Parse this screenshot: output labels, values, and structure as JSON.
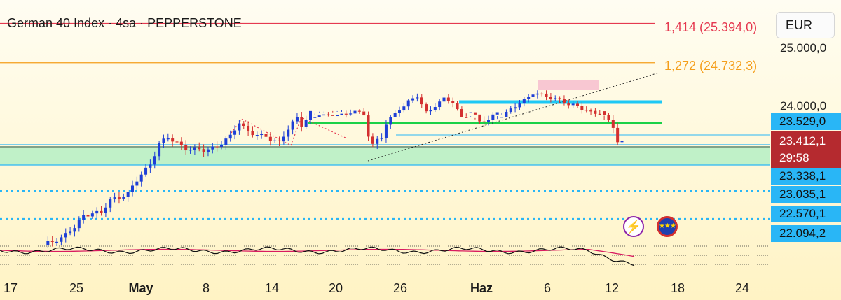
{
  "header": {
    "title": "German 40 Index · 4sa · PEPPERSTONE",
    "currency": "EUR"
  },
  "fib_levels": [
    {
      "label": "1,414 (25.394,0)",
      "price": 25394.0,
      "color": "#e53950"
    },
    {
      "label": "1,272 (24.732,3)",
      "price": 24732.3,
      "color": "#f59e1a"
    }
  ],
  "price_axis": {
    "ticks": [
      "25.000,0",
      "24.000,0"
    ],
    "levels": [
      "23.529,0",
      "23.338,1",
      "23.035,1",
      "22.570,1",
      "22.094,2"
    ],
    "current": {
      "price": "23.412,1",
      "countdown": "29:58"
    }
  },
  "time_axis": [
    "17",
    "25",
    "May",
    "8",
    "14",
    "20",
    "26",
    "Haz",
    "6",
    "12",
    "18",
    "24"
  ],
  "badges": {
    "flash_icon": "lightning-bolt-icon",
    "eu_icon": "eu-flag-icon"
  },
  "chart_data": {
    "type": "candlestick",
    "symbol": "German 40 Index",
    "timeframe": "4sa",
    "source": "PEPPERSTONE",
    "currency": "EUR",
    "up_color": "#1e3fd6",
    "down_color": "#d32f2f",
    "y_ticks": [
      25000,
      24000
    ],
    "x_labels": [
      "17",
      "25",
      "May",
      "8",
      "14",
      "20",
      "26",
      "Haz",
      "6",
      "12",
      "18",
      "24"
    ],
    "current_price": 23412.1,
    "horizontal_levels": [
      {
        "price": 23529.0,
        "color": "#29b6f6",
        "style": "solid"
      },
      {
        "price": 23338.1,
        "color": "#29b6f6",
        "style": "solid"
      },
      {
        "price": 23035.1,
        "color": "#29b6f6",
        "style": "dotted"
      },
      {
        "price": 22570.1,
        "color": "#29b6f6",
        "style": "dotted"
      },
      {
        "price": 22094.2,
        "color": "#29b6f6",
        "style": "solid"
      }
    ],
    "fibonacci": [
      {
        "ratio": "1,414",
        "price": 25394.0
      },
      {
        "ratio": "1,272",
        "price": 24732.3
      }
    ],
    "close_path": [
      [
        0,
        22080
      ],
      [
        4,
        22180
      ],
      [
        7,
        22300
      ],
      [
        9,
        22460
      ],
      [
        11,
        22500
      ],
      [
        13,
        22490
      ],
      [
        15,
        22650
      ],
      [
        17,
        22700
      ],
      [
        19,
        22740
      ],
      [
        22,
        22980
      ],
      [
        24,
        23120
      ],
      [
        26,
        23380
      ],
      [
        28,
        23440
      ],
      [
        30,
        23390
      ],
      [
        32,
        23320
      ],
      [
        34,
        23300
      ],
      [
        36,
        23280
      ],
      [
        38,
        23330
      ],
      [
        40,
        23380
      ],
      [
        42,
        23460
      ],
      [
        44,
        23650
      ],
      [
        46,
        23540
      ],
      [
        48,
        23480
      ],
      [
        50,
        23460
      ],
      [
        52,
        23420
      ],
      [
        53,
        23400
      ],
      [
        55,
        23560
      ],
      [
        57,
        23700
      ],
      [
        58,
        23620
      ],
      [
        60,
        23780
      ],
      [
        62,
        23860
      ],
      [
        64,
        23830
      ],
      [
        66,
        23880
      ],
      [
        68,
        23860
      ],
      [
        70,
        23920
      ],
      [
        72,
        23850
      ],
      [
        73,
        23500
      ],
      [
        74,
        23380
      ],
      [
        76,
        23450
      ],
      [
        78,
        23800
      ],
      [
        80,
        23960
      ],
      [
        82,
        24080
      ],
      [
        84,
        24160
      ],
      [
        86,
        23900
      ],
      [
        88,
        24020
      ],
      [
        90,
        24120
      ],
      [
        92,
        24060
      ],
      [
        94,
        23820
      ],
      [
        96,
        23780
      ],
      [
        98,
        23650
      ],
      [
        100,
        23680
      ],
      [
        102,
        23800
      ],
      [
        104,
        23880
      ],
      [
        106,
        24000
      ],
      [
        108,
        24120
      ],
      [
        110,
        24220
      ],
      [
        112,
        24180
      ],
      [
        114,
        24150
      ],
      [
        116,
        24120
      ],
      [
        118,
        24020
      ],
      [
        120,
        24000
      ],
      [
        122,
        23940
      ],
      [
        124,
        23880
      ],
      [
        126,
        23720
      ],
      [
        128,
        23600
      ],
      [
        129,
        23420
      ],
      [
        130,
        23412
      ]
    ]
  }
}
